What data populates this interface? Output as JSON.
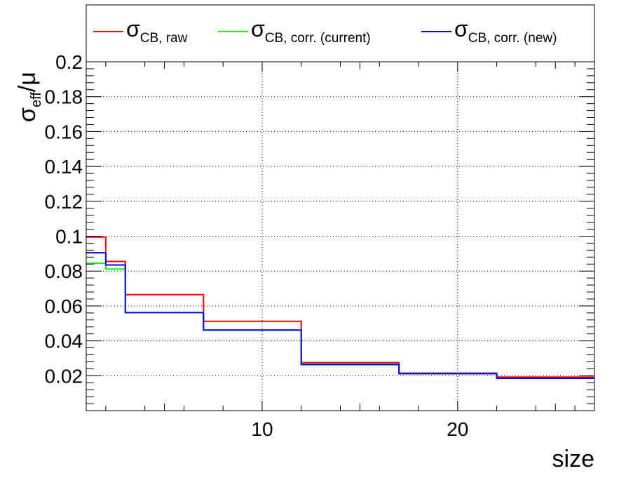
{
  "chart_data": {
    "type": "line",
    "step": true,
    "xlabel": "size",
    "ylabel": {
      "main": "σ",
      "sub": "eff",
      "slash": "/",
      "den": "μ"
    },
    "xlim": [
      1,
      27
    ],
    "ylim": [
      0,
      0.2
    ],
    "grid": true,
    "legend_position": "top",
    "x_edges": [
      1,
      2,
      3,
      7,
      12,
      17,
      22,
      27
    ],
    "x_ticks": [
      {
        "value": 10,
        "label": "10"
      },
      {
        "value": 20,
        "label": "20"
      }
    ],
    "y_ticks": [
      {
        "value": 0.02,
        "label": "0.02"
      },
      {
        "value": 0.04,
        "label": "0.04"
      },
      {
        "value": 0.06,
        "label": "0.06"
      },
      {
        "value": 0.08,
        "label": "0.08"
      },
      {
        "value": 0.1,
        "label": "0.1"
      },
      {
        "value": 0.12,
        "label": "0.12"
      },
      {
        "value": 0.14,
        "label": "0.14"
      },
      {
        "value": 0.16,
        "label": "0.16"
      },
      {
        "value": 0.18,
        "label": "0.18"
      },
      {
        "value": 0.2,
        "label": "0.2"
      }
    ],
    "series": [
      {
        "name": "σCB, raw",
        "symbol": "σ",
        "subscript": "CB, raw",
        "color": "#ff0000",
        "values": [
          0.0995,
          0.0855,
          0.0665,
          0.0512,
          0.0275,
          0.0215,
          0.0192
        ]
      },
      {
        "name": "σCB, corr. (current)",
        "symbol": "σ",
        "subscript": "CB, corr. (current)",
        "color": "#00ff00",
        "values": [
          0.0845,
          0.0812,
          0.0562,
          0.0462,
          0.0262,
          0.0212,
          0.0185
        ]
      },
      {
        "name": "σCB, corr. (new)",
        "symbol": "σ",
        "subscript": "CB, corr. (new)",
        "color": "#0000ff",
        "values": [
          0.0905,
          0.0835,
          0.0562,
          0.0462,
          0.0265,
          0.0212,
          0.0185
        ]
      }
    ]
  }
}
